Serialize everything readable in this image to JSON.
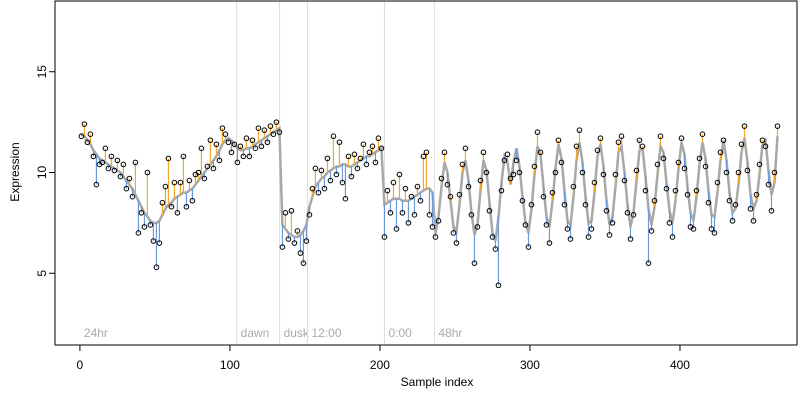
{
  "chart_data": {
    "type": "residual",
    "xlabel": "Sample index",
    "ylabel": "Expression",
    "xlim": [
      -16.6,
      478
    ],
    "ylim": [
      1.44,
      18.51
    ],
    "xticks": [
      0,
      100,
      200,
      300,
      400
    ],
    "yticks": [
      5,
      10,
      15
    ],
    "fit_color": "#a8a8a8",
    "above_color": "#f0a830",
    "below_color": "#6a9bd8",
    "marker_line_color": "#dddddd",
    "markers": [
      {
        "x": 0,
        "label": "24hr",
        "line": false
      },
      {
        "x": 104.5,
        "label": "dawn",
        "line": true
      },
      {
        "x": 133.1,
        "label": "dusk",
        "line": true
      },
      {
        "x": 151.7,
        "label": "12:00",
        "line": true
      },
      {
        "x": 203,
        "label": "0:00",
        "line": true
      },
      {
        "x": 236.3,
        "label": "48hr",
        "line": true
      }
    ],
    "marker_label_y": 2,
    "x": [
      1,
      3,
      5,
      7,
      9,
      11,
      13,
      15,
      17,
      19,
      21,
      23,
      25,
      27,
      29,
      31,
      33,
      35,
      37,
      39,
      41,
      43,
      45,
      47,
      49,
      51,
      53,
      55,
      57,
      59,
      61,
      63,
      65,
      67,
      69,
      71,
      73,
      75,
      77,
      79,
      81,
      83,
      85,
      87,
      89,
      91,
      93,
      95,
      97,
      99,
      101,
      103,
      105,
      107,
      109,
      111,
      113,
      115,
      117,
      119,
      121,
      123,
      125,
      127,
      129,
      131,
      133,
      135,
      137,
      139,
      141,
      143,
      145,
      147,
      149,
      151,
      153,
      155,
      157,
      159,
      161,
      163,
      165,
      167,
      169,
      171,
      173,
      175,
      177,
      179,
      181,
      183,
      185,
      187,
      189,
      191,
      193,
      195,
      197,
      199,
      201,
      203,
      205,
      207,
      209,
      211,
      213,
      215,
      217,
      219,
      221,
      223,
      225,
      227,
      229,
      231,
      233,
      235,
      237,
      239,
      241,
      243,
      245,
      247,
      249,
      251,
      253,
      255,
      257,
      259,
      261,
      263,
      265,
      267,
      269,
      271,
      273,
      275,
      277,
      279,
      281,
      283,
      285,
      287,
      289,
      291,
      293,
      295,
      297,
      299,
      301,
      303,
      305,
      307,
      309,
      311,
      313,
      315,
      317,
      319,
      321,
      323,
      325,
      327,
      329,
      331,
      333,
      335,
      337,
      339,
      341,
      343,
      345,
      347,
      349,
      351,
      353,
      355,
      357,
      359,
      361,
      363,
      365,
      367,
      369,
      371,
      373,
      375,
      377,
      379,
      381,
      383,
      385,
      387,
      389,
      391,
      393,
      395,
      397,
      399,
      401,
      403,
      405,
      407,
      409,
      411,
      413,
      415,
      417,
      419,
      421,
      423,
      425,
      427,
      429,
      431,
      433,
      435,
      437,
      439,
      441,
      443,
      445,
      447,
      449,
      451,
      453,
      455,
      457,
      459,
      461,
      463,
      465
    ],
    "fitted": [
      11.9,
      11.8,
      11.6,
      11.4,
      11.1,
      10.9,
      10.7,
      10.6,
      10.5,
      10.4,
      10.3,
      10.2,
      10.1,
      10.0,
      9.8,
      9.6,
      9.4,
      9.2,
      8.9,
      8.6,
      8.3,
      8.0,
      7.8,
      7.6,
      7.5,
      7.5,
      7.6,
      7.9,
      8.2,
      8.4,
      8.5,
      8.7,
      8.8,
      8.9,
      9.0,
      9.0,
      9.1,
      9.2,
      9.4,
      9.6,
      9.8,
      10.0,
      10.2,
      10.4,
      10.6,
      10.8,
      11.1,
      11.4,
      11.6,
      11.7,
      11.6,
      11.4,
      11.2,
      11.1,
      11.1,
      11.2,
      11.2,
      11.3,
      11.4,
      11.5,
      11.6,
      11.7,
      11.8,
      11.9,
      12.0,
      12.1,
      12.2,
      7.4,
      7.2,
      7.0,
      6.9,
      6.8,
      6.8,
      6.9,
      7.1,
      7.4,
      8.3,
      8.8,
      9.3,
      9.5,
      9.7,
      9.8,
      10.0,
      10.1,
      10.2,
      10.3,
      10.3,
      10.4,
      10.4,
      10.3,
      10.3,
      10.4,
      10.5,
      10.6,
      10.7,
      10.8,
      10.8,
      10.9,
      11.0,
      11.1,
      11.2,
      8.4,
      8.5,
      8.6,
      8.7,
      8.7,
      8.7,
      8.6,
      8.6,
      8.6,
      8.7,
      8.8,
      8.9,
      9.0,
      9.1,
      9.2,
      9.2,
      9.0,
      7.0,
      7.8,
      9.3,
      10.5,
      10.0,
      8.6,
      7.3,
      7.1,
      8.4,
      10.0,
      10.6,
      9.6,
      8.0,
      6.9,
      7.4,
      9.1,
      10.6,
      10.1,
      8.5,
      7.0,
      6.6,
      7.8,
      9.5,
      10.8,
      10.5,
      9.4,
      10.5,
      11.2,
      10.3,
      8.8,
      7.5,
      7.0,
      8.2,
      9.9,
      11.3,
      10.9,
      9.3,
      7.8,
      7.3,
      8.6,
      10.2,
      11.4,
      10.7,
      9.1,
      7.6,
      7.4,
      8.8,
      10.6,
      11.5,
      10.5,
      8.8,
      7.5,
      7.6,
      9.0,
      10.8,
      11.4,
      10.3,
      8.6,
      7.4,
      7.8,
      9.3,
      11.0,
      11.3,
      10.0,
      8.4,
      7.3,
      8.0,
      9.6,
      11.1,
      11.2,
      9.8,
      8.2,
      7.4,
      8.3,
      9.9,
      11.3,
      11.0,
      9.5,
      8.1,
      7.5,
      8.6,
      10.2,
      11.5,
      10.9,
      9.3,
      8.0,
      7.6,
      8.8,
      10.4,
      11.5,
      10.7,
      9.1,
      7.9,
      7.8,
      9.0,
      10.6,
      11.6,
      10.6,
      9.0,
      8.0,
      8.2,
      9.4,
      11.0,
      11.7,
      10.5,
      8.9,
      8.2,
      8.6,
      9.9,
      11.4,
      11.6,
      10.1,
      8.9,
      9.5,
      11.8
    ],
    "values": [
      11.8,
      12.4,
      11.5,
      11.9,
      10.8,
      9.4,
      10.4,
      10.5,
      11.2,
      10.2,
      10.8,
      10.1,
      10.6,
      9.8,
      10.4,
      9.2,
      9.7,
      8.8,
      10.5,
      7.0,
      8.0,
      7.3,
      10.0,
      7.4,
      6.6,
      5.3,
      6.5,
      8.5,
      9.3,
      10.7,
      8.3,
      9.5,
      8.0,
      9.5,
      10.8,
      8.3,
      9.6,
      8.6,
      9.9,
      10.0,
      11.2,
      9.7,
      10.3,
      11.6,
      10.2,
      11.4,
      10.6,
      12.2,
      11.9,
      11.5,
      11.0,
      11.4,
      10.5,
      11.3,
      10.8,
      11.7,
      10.8,
      11.6,
      11.2,
      12.2,
      11.3,
      12.1,
      11.5,
      12.3,
      11.9,
      12.5,
      12.0,
      6.3,
      8.0,
      6.7,
      8.1,
      6.5,
      7.1,
      6.0,
      5.5,
      6.6,
      7.9,
      9.2,
      10.2,
      9.0,
      10.1,
      9.2,
      10.7,
      9.6,
      11.8,
      9.9,
      11.5,
      9.5,
      8.7,
      10.8,
      9.8,
      10.9,
      10.2,
      10.7,
      11.4,
      10.4,
      11.0,
      11.3,
      10.5,
      11.7,
      11.2,
      6.8,
      9.1,
      8.0,
      9.5,
      7.2,
      9.9,
      8.0,
      9.2,
      7.5,
      8.8,
      7.9,
      9.3,
      8.6,
      10.8,
      11.0,
      7.9,
      7.3,
      6.8,
      7.6,
      9.7,
      11.0,
      9.4,
      8.8,
      7.0,
      6.5,
      8.9,
      10.4,
      11.2,
      9.3,
      7.9,
      5.5,
      7.3,
      9.6,
      11.0,
      10.0,
      8.1,
      6.8,
      6.2,
      4.4,
      9.1,
      10.6,
      10.9,
      9.7,
      9.9,
      10.6,
      10.0,
      8.6,
      7.4,
      6.3,
      8.4,
      10.3,
      12.0,
      11.0,
      8.8,
      7.4,
      6.5,
      9.0,
      10.0,
      11.6,
      10.5,
      8.4,
      7.2,
      6.7,
      9.3,
      11.3,
      12.1,
      10.0,
      8.4,
      6.8,
      7.2,
      9.5,
      11.1,
      11.7,
      9.9,
      8.1,
      6.9,
      7.5,
      9.9,
      11.5,
      11.8,
      9.6,
      8.0,
      6.7,
      7.9,
      10.1,
      11.6,
      11.3,
      9.1,
      5.5,
      7.1,
      8.6,
      10.4,
      11.8,
      10.7,
      9.2,
      7.5,
      6.8,
      9.1,
      10.5,
      11.7,
      10.2,
      8.9,
      7.3,
      7.2,
      9.1,
      10.7,
      11.9,
      10.3,
      8.5,
      7.2,
      7.0,
      9.5,
      11.0,
      11.6,
      10.0,
      8.6,
      7.6,
      8.4,
      10.0,
      11.4,
      12.3,
      10.1,
      8.2,
      7.6,
      8.9,
      10.4,
      11.6,
      11.3,
      9.4,
      8.1,
      10.0,
      12.3
    ]
  }
}
